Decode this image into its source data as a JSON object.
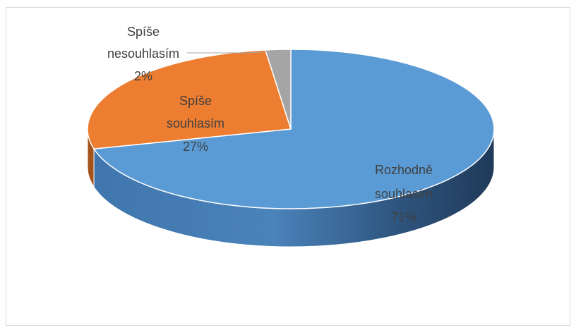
{
  "chart_data": {
    "type": "pie",
    "title": "",
    "style": "3d",
    "legend": "none",
    "slices": [
      {
        "label_lines": [
          "Rozhodně",
          "souhlasím"
        ],
        "value": 71,
        "value_label": "71%",
        "color": "#5b9bd5",
        "side_color": "#2e5f8f",
        "text_color": "#404040"
      },
      {
        "label_lines": [
          "Spíše",
          "souhlasím"
        ],
        "value": 27,
        "value_label": "27%",
        "color": "#ed7d31",
        "side_color": "#a5521b",
        "text_color": "#404040"
      },
      {
        "label_lines": [
          "Spíše",
          "nesouhlasím"
        ],
        "value": 2,
        "value_label": "2%",
        "color": "#a5a5a5",
        "side_color": "#6e6e6e",
        "text_color": "#404040"
      }
    ]
  }
}
